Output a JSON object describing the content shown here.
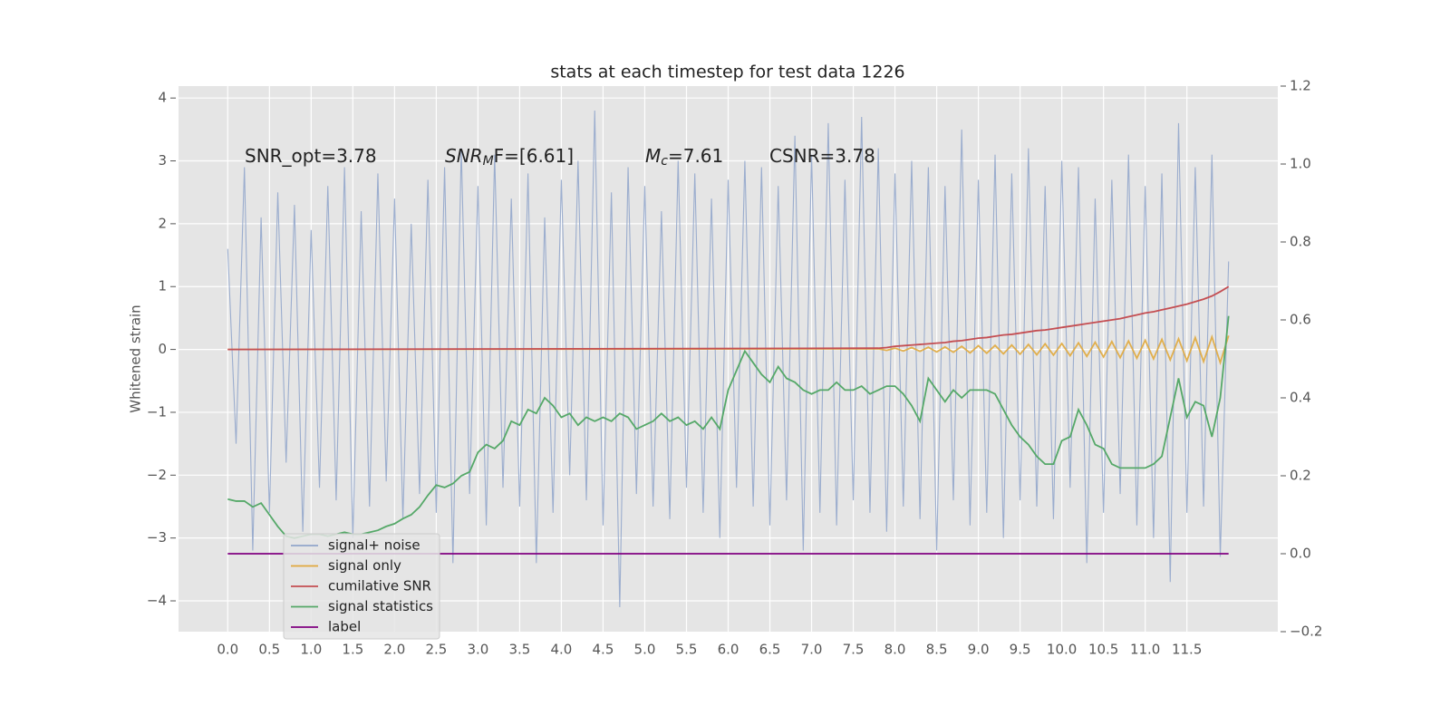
{
  "chart_data": {
    "type": "line",
    "title": "stats at each timestep for test data 1226",
    "ylabel": "Whitened strain",
    "annotations": [
      {
        "text": "SNR_opt=3.78"
      },
      {
        "base": "SNR",
        "sub": "M",
        "rest": "F=[6.61]"
      },
      {
        "base": "M",
        "sub": "c",
        "rest": "=7.61"
      },
      {
        "text": "CSNR=3.78"
      }
    ],
    "xlim": [
      -0.59,
      12.59
    ],
    "ylim": [
      -4.49,
      4.19
    ],
    "y2lim": [
      -0.2,
      1.2
    ],
    "xticks": [
      {
        "value": 0,
        "label": "0.0"
      },
      0.5,
      {
        "value": 1,
        "label": "1.0"
      },
      1.5,
      {
        "value": 2,
        "label": "2.0"
      },
      2.5,
      {
        "value": 3,
        "label": "3.0"
      },
      3.5,
      {
        "value": 4,
        "label": "4.0"
      },
      4.5,
      {
        "value": 5,
        "label": "5.0"
      },
      5.5,
      {
        "value": 6,
        "label": "6.0"
      },
      6.5,
      {
        "value": 7,
        "label": "7.0"
      },
      7.5,
      {
        "value": 8,
        "label": "8.0"
      },
      8.5,
      {
        "value": 9,
        "label": "9.0"
      },
      9.5,
      {
        "value": 10,
        "label": "10.0"
      },
      10.5,
      {
        "value": 11,
        "label": "11.0"
      },
      11.5
    ],
    "yticks": [
      {
        "value": -4,
        "label": "−4"
      },
      {
        "value": -3,
        "label": "−3"
      },
      {
        "value": -2,
        "label": "−2"
      },
      {
        "value": -1,
        "label": "−1"
      },
      0,
      1,
      2,
      3,
      4
    ],
    "y2ticks": [
      {
        "value": -0.2,
        "label": "−0.2"
      },
      {
        "value": 0,
        "label": "0.0"
      },
      0.2,
      0.4,
      0.6,
      0.8,
      {
        "value": 1,
        "label": "1.0"
      },
      1.2
    ],
    "grid": true,
    "legend": "lower left",
    "x": [
      0,
      0.1,
      0.2,
      0.3,
      0.4,
      0.5,
      0.6,
      0.7,
      0.8,
      0.9,
      1,
      1.1,
      1.2,
      1.3,
      1.4,
      1.5,
      1.6,
      1.7,
      1.8,
      1.9,
      2,
      2.1,
      2.2,
      2.3,
      2.4,
      2.5,
      2.6,
      2.7,
      2.8,
      2.9,
      3,
      3.1,
      3.2,
      3.3,
      3.4,
      3.5,
      3.6,
      3.7,
      3.8,
      3.9,
      4,
      4.1,
      4.2,
      4.3,
      4.4,
      4.5,
      4.6,
      4.7,
      4.8,
      4.9,
      5,
      5.1,
      5.2,
      5.3,
      5.4,
      5.5,
      5.6,
      5.7,
      5.8,
      5.9,
      6,
      6.1,
      6.2,
      6.3,
      6.4,
      6.5,
      6.6,
      6.7,
      6.8,
      6.9,
      7,
      7.1,
      7.2,
      7.3,
      7.4,
      7.5,
      7.6,
      7.7,
      7.8,
      7.9,
      8,
      8.1,
      8.2,
      8.3,
      8.4,
      8.5,
      8.6,
      8.7,
      8.8,
      8.9,
      9,
      9.1,
      9.2,
      9.3,
      9.4,
      9.5,
      9.6,
      9.7,
      9.8,
      9.9,
      10,
      10.1,
      10.2,
      10.3,
      10.4,
      10.5,
      10.6,
      10.7,
      10.8,
      10.9,
      11,
      11.1,
      11.2,
      11.3,
      11.4,
      11.5,
      11.6,
      11.7,
      11.8,
      11.9,
      12
    ],
    "series": [
      {
        "name": "signal+ noise",
        "color": "#92a6cb",
        "values": [
          1.6,
          -1.5,
          2.9,
          -3.2,
          2.1,
          -2.6,
          2.5,
          -1.8,
          2.3,
          -2.9,
          1.9,
          -2.2,
          2.6,
          -2.4,
          2.9,
          -3.0,
          2.2,
          -2.5,
          2.8,
          -2.1,
          2.4,
          -2.7,
          2.0,
          -2.3,
          2.7,
          -2.6,
          2.9,
          -3.4,
          3.2,
          -2.3,
          2.6,
          -2.8,
          3.1,
          -2.2,
          2.4,
          -2.5,
          2.8,
          -3.4,
          2.1,
          -2.6,
          2.7,
          -2.0,
          3.0,
          -2.4,
          3.8,
          -2.8,
          2.5,
          -4.1,
          2.9,
          -2.3,
          2.6,
          -2.5,
          2.2,
          -2.7,
          3.0,
          -2.2,
          2.8,
          -2.6,
          2.4,
          -3.0,
          2.7,
          -2.2,
          3.0,
          -2.5,
          2.9,
          -2.8,
          2.6,
          -2.4,
          3.4,
          -3.2,
          3.1,
          -2.6,
          3.6,
          -2.8,
          2.7,
          -2.4,
          3.7,
          -2.6,
          3.2,
          -2.9,
          2.8,
          -2.5,
          3.0,
          -2.7,
          2.9,
          -3.2,
          2.6,
          -2.4,
          3.5,
          -2.8,
          2.7,
          -2.6,
          3.1,
          -3.0,
          2.8,
          -2.4,
          3.2,
          -2.5,
          2.6,
          -2.7,
          3.0,
          -2.2,
          2.9,
          -3.4,
          2.4,
          -2.6,
          2.7,
          -2.3,
          3.1,
          -2.8,
          2.6,
          -3.0,
          2.8,
          -3.7,
          3.6,
          -2.6,
          2.9,
          -2.5,
          3.1,
          -3.3,
          1.4
        ]
      },
      {
        "name": "signal only",
        "color": "#e0a83c",
        "x": [
          0,
          7.8,
          7.9,
          8,
          8.1,
          8.2,
          8.3,
          8.4,
          8.5,
          8.6,
          8.7,
          8.8,
          8.9,
          9,
          9.1,
          9.2,
          9.3,
          9.4,
          9.5,
          9.6,
          9.7,
          9.8,
          9.9,
          10,
          10.1,
          10.2,
          10.3,
          10.4,
          10.5,
          10.6,
          10.7,
          10.8,
          10.9,
          11,
          11.1,
          11.2,
          11.3,
          11.4,
          11.5,
          11.6,
          11.7,
          11.8,
          11.9,
          12
        ],
        "values": [
          0,
          0.01,
          -0.015,
          0.02,
          -0.025,
          0.03,
          -0.03,
          0.035,
          -0.04,
          0.04,
          -0.045,
          0.05,
          -0.055,
          0.06,
          -0.06,
          0.065,
          -0.07,
          0.07,
          -0.075,
          0.08,
          -0.085,
          0.09,
          -0.09,
          0.095,
          -0.1,
          0.105,
          -0.11,
          0.115,
          -0.12,
          0.125,
          -0.13,
          0.135,
          -0.14,
          0.145,
          -0.15,
          0.16,
          -0.165,
          0.17,
          -0.18,
          0.19,
          -0.195,
          0.2,
          -0.21,
          0.22
        ]
      },
      {
        "name": "cumilative SNR",
        "color": "#c44e52",
        "x": [
          0,
          7.8,
          7.9,
          8,
          8.1,
          8.2,
          8.3,
          8.4,
          8.5,
          8.6,
          8.7,
          8.8,
          8.9,
          9,
          9.1,
          9.2,
          9.3,
          9.4,
          9.5,
          9.6,
          9.7,
          9.8,
          9.9,
          10,
          10.1,
          10.2,
          10.3,
          10.4,
          10.5,
          10.6,
          10.7,
          10.8,
          10.9,
          11,
          11.1,
          11.2,
          11.3,
          11.4,
          11.5,
          11.6,
          11.7,
          11.8,
          11.9,
          12
        ],
        "values": [
          0,
          0.02,
          0.03,
          0.05,
          0.06,
          0.07,
          0.08,
          0.09,
          0.1,
          0.11,
          0.13,
          0.14,
          0.16,
          0.18,
          0.19,
          0.21,
          0.23,
          0.24,
          0.26,
          0.28,
          0.3,
          0.31,
          0.33,
          0.35,
          0.37,
          0.39,
          0.41,
          0.43,
          0.45,
          0.47,
          0.49,
          0.52,
          0.55,
          0.58,
          0.6,
          0.63,
          0.66,
          0.69,
          0.72,
          0.76,
          0.8,
          0.85,
          0.92,
          1.0
        ]
      },
      {
        "name": "signal statistics",
        "color": "#55a868",
        "axis": "y2",
        "values": [
          0.14,
          0.135,
          0.135,
          0.12,
          0.13,
          0.1,
          0.07,
          0.045,
          0.04,
          0.045,
          0.05,
          0.05,
          0.045,
          0.05,
          0.055,
          0.05,
          0.05,
          0.055,
          0.06,
          0.07,
          0.077,
          0.09,
          0.1,
          0.12,
          0.15,
          0.176,
          0.17,
          0.18,
          0.2,
          0.21,
          0.26,
          0.28,
          0.27,
          0.29,
          0.34,
          0.33,
          0.37,
          0.36,
          0.4,
          0.38,
          0.35,
          0.36,
          0.33,
          0.35,
          0.34,
          0.35,
          0.34,
          0.36,
          0.35,
          0.32,
          0.33,
          0.34,
          0.36,
          0.34,
          0.35,
          0.33,
          0.34,
          0.32,
          0.35,
          0.32,
          0.42,
          0.47,
          0.52,
          0.49,
          0.46,
          0.44,
          0.48,
          0.45,
          0.44,
          0.42,
          0.41,
          0.42,
          0.42,
          0.44,
          0.42,
          0.42,
          0.43,
          0.41,
          0.42,
          0.43,
          0.43,
          0.41,
          0.38,
          0.34,
          0.45,
          0.42,
          0.39,
          0.42,
          0.4,
          0.42,
          0.42,
          0.42,
          0.41,
          0.37,
          0.33,
          0.3,
          0.28,
          0.25,
          0.23,
          0.23,
          0.29,
          0.3,
          0.37,
          0.33,
          0.28,
          0.27,
          0.23,
          0.22,
          0.22,
          0.22,
          0.22,
          0.23,
          0.25,
          0.35,
          0.45,
          0.35,
          0.39,
          0.38,
          0.3,
          0.4,
          0.61
        ]
      },
      {
        "name": "label",
        "color": "#800080",
        "axis": "y2",
        "x": [
          0,
          12
        ],
        "values": [
          0,
          0
        ]
      }
    ]
  }
}
